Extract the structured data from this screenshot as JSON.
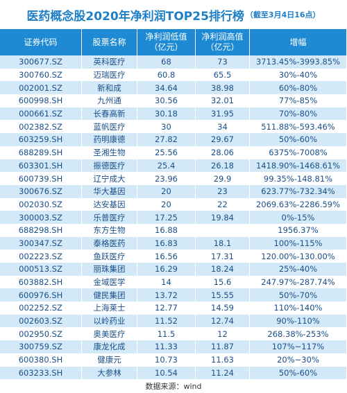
{
  "header": {
    "title": "医药概念股2020年净利润TOP25排行榜",
    "subtitle": "（截至3月4日16点）"
  },
  "table": {
    "columns": [
      "证券代码",
      "股票名称",
      "净利润低值\n（亿元）",
      "净利润高值\n（亿元）",
      "增幅"
    ],
    "rows": [
      [
        "300677.SZ",
        "英科医疗",
        "68",
        "73",
        "3713.45%-3993.85%"
      ],
      [
        "300760.SZ",
        "迈瑞医疗",
        "60.8",
        "65.5",
        "30%-40%"
      ],
      [
        "002001.SZ",
        "新和成",
        "34.64",
        "38.98",
        "60%-80%"
      ],
      [
        "600998.SH",
        "九州通",
        "30.56",
        "32.01",
        "77%-85%"
      ],
      [
        "000661.SZ",
        "长春高新",
        "30.18",
        "31.95",
        "70%-80%"
      ],
      [
        "002382.SZ",
        "蓝帆医疗",
        "30",
        "34",
        "511.88%-593.46%"
      ],
      [
        "603259.SH",
        "药明康德",
        "27.82",
        "29.67",
        "50%-60%"
      ],
      [
        "688289.SH",
        "圣湘生物",
        "25.56",
        "28.06",
        "6375%-7008%"
      ],
      [
        "603301.SH",
        "振德医疗",
        "25.4",
        "26.18",
        "1418.90%-1468.61%"
      ],
      [
        "600739.SH",
        "辽宁成大",
        "23.96",
        "29.9",
        "99.35%-148.81%"
      ],
      [
        "300676.SZ",
        "华大基因",
        "20",
        "23",
        "623.77%-732.34%"
      ],
      [
        "002030.SZ",
        "达安基因",
        "20",
        "22",
        "2069.63%-2286.59%"
      ],
      [
        "300003.SZ",
        "乐普医疗",
        "17.25",
        "19.84",
        "0%-15%"
      ],
      [
        "688298.SH",
        "东方生物",
        "16.88",
        null,
        "1956.37%"
      ],
      [
        "300347.SZ",
        "泰格医药",
        "16.83",
        "18.1",
        "100%-115%"
      ],
      [
        "002223.SZ",
        "鱼跃医疗",
        "16.56",
        "17.31",
        "120.00%-130.00%"
      ],
      [
        "000513.SZ",
        "丽珠集团",
        "16.29",
        "18.24",
        "25%-40%"
      ],
      [
        "603882.SH",
        "金域医学",
        "14",
        "15.6",
        "247.97%-287.74%"
      ],
      [
        "600976.SH",
        "健民集团",
        "13.72",
        "15.55",
        "50%-70%"
      ],
      [
        "002252.SZ",
        "上海莱士",
        "12.77",
        "14.59",
        "110%-140%"
      ],
      [
        "002603.SZ",
        "以岭药业",
        "11.52",
        "12.74",
        "90%-110%"
      ],
      [
        "002950.SZ",
        "奥美医疗",
        "11.5",
        "12",
        "268.38%-253%"
      ],
      [
        "300759.SZ",
        "康龙化成",
        "11.33",
        "11.87",
        "107%~117%"
      ],
      [
        "600380.SH",
        "健康元",
        "10.73",
        "11.63",
        "20%~30%"
      ],
      [
        "603233.SH",
        "大参林",
        "10.54",
        "11.24",
        "50%-60%"
      ]
    ]
  },
  "footer": {
    "source": "数据来源：wind"
  }
}
